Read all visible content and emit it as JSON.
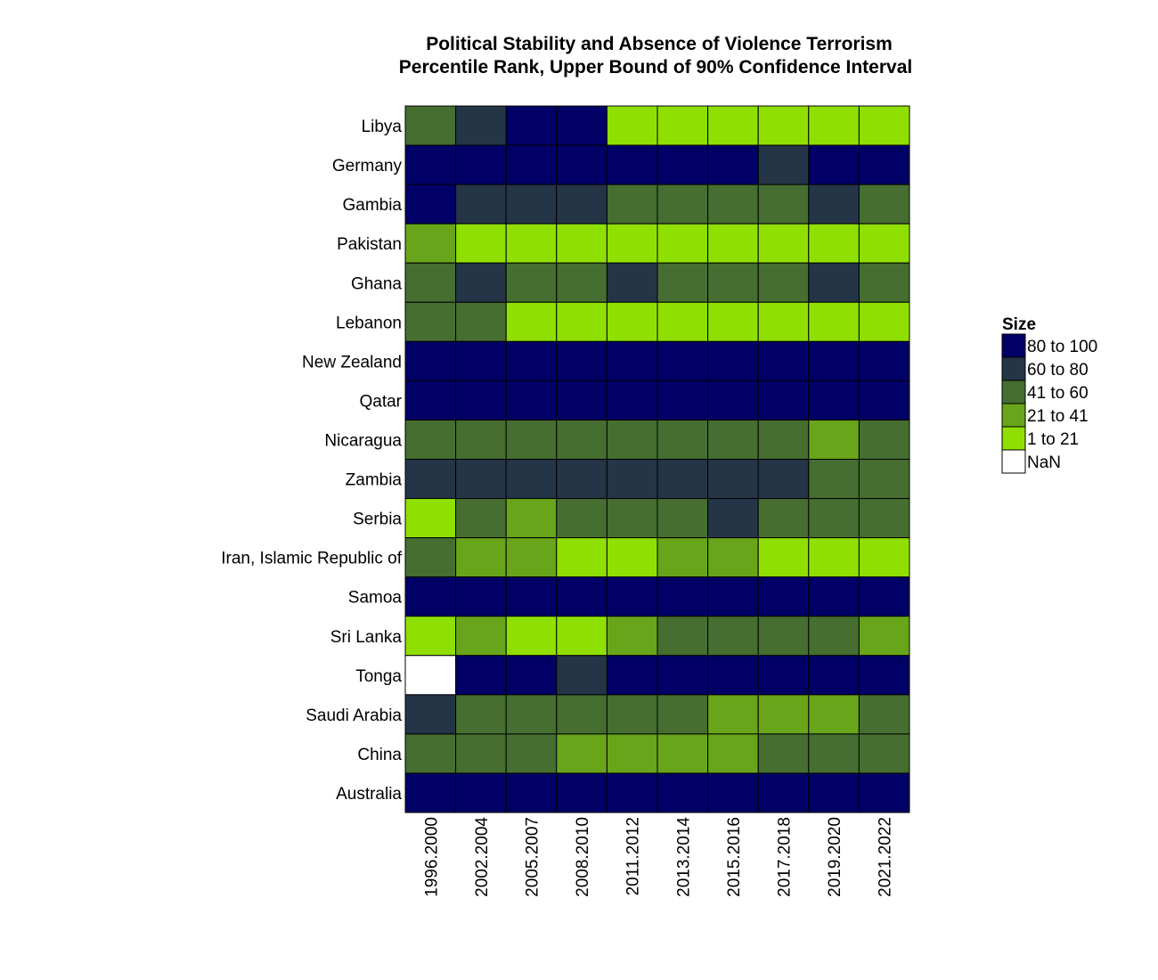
{
  "chart_data": {
    "type": "heatmap",
    "title": [
      "Political Stability and Absence of Violence Terrorism",
      "Percentile Rank, Upper Bound of 90% Confidence Interval"
    ],
    "legend_title": "Size",
    "legend_position": "right",
    "x": [
      "1996.2000",
      "2002.2004",
      "2005.2007",
      "2008.2010",
      "2011.2012",
      "2013.2014",
      "2015.2016",
      "2017.2018",
      "2019.2020",
      "2021.2022"
    ],
    "y": [
      "Libya",
      "Germany",
      "Gambia",
      "Pakistan",
      "Ghana",
      "Lebanon",
      "New Zealand",
      "Qatar",
      "Nicaragua",
      "Zambia",
      "Serbia",
      "Iran, Islamic Republic of",
      "Samoa",
      "Sri Lanka",
      "Tonga",
      "Saudi Arabia",
      "China",
      "Australia"
    ],
    "bins": [
      {
        "label": "80 to 100",
        "color": "#000066"
      },
      {
        "label": "60 to 80",
        "color": "#243547"
      },
      {
        "label": "41 to 60",
        "color": "#456E30"
      },
      {
        "label": "21 to 41",
        "color": "#68A51A"
      },
      {
        "label": "1 to 21",
        "color": "#8FE000"
      },
      {
        "label": "NaN",
        "color": "#FFFFFF"
      }
    ],
    "cells": [
      [
        "41 to 60",
        "60 to 80",
        "80 to 100",
        "80 to 100",
        "1 to 21",
        "1 to 21",
        "1 to 21",
        "1 to 21",
        "1 to 21",
        "1 to 21"
      ],
      [
        "80 to 100",
        "80 to 100",
        "80 to 100",
        "80 to 100",
        "80 to 100",
        "80 to 100",
        "80 to 100",
        "60 to 80",
        "80 to 100",
        "80 to 100"
      ],
      [
        "80 to 100",
        "60 to 80",
        "60 to 80",
        "60 to 80",
        "41 to 60",
        "41 to 60",
        "41 to 60",
        "41 to 60",
        "60 to 80",
        "41 to 60"
      ],
      [
        "21 to 41",
        "1 to 21",
        "1 to 21",
        "1 to 21",
        "1 to 21",
        "1 to 21",
        "1 to 21",
        "1 to 21",
        "1 to 21",
        "1 to 21"
      ],
      [
        "41 to 60",
        "60 to 80",
        "41 to 60",
        "41 to 60",
        "60 to 80",
        "41 to 60",
        "41 to 60",
        "41 to 60",
        "60 to 80",
        "41 to 60"
      ],
      [
        "41 to 60",
        "41 to 60",
        "1 to 21",
        "1 to 21",
        "1 to 21",
        "1 to 21",
        "1 to 21",
        "1 to 21",
        "1 to 21",
        "1 to 21"
      ],
      [
        "80 to 100",
        "80 to 100",
        "80 to 100",
        "80 to 100",
        "80 to 100",
        "80 to 100",
        "80 to 100",
        "80 to 100",
        "80 to 100",
        "80 to 100"
      ],
      [
        "80 to 100",
        "80 to 100",
        "80 to 100",
        "80 to 100",
        "80 to 100",
        "80 to 100",
        "80 to 100",
        "80 to 100",
        "80 to 100",
        "80 to 100"
      ],
      [
        "41 to 60",
        "41 to 60",
        "41 to 60",
        "41 to 60",
        "41 to 60",
        "41 to 60",
        "41 to 60",
        "41 to 60",
        "21 to 41",
        "41 to 60"
      ],
      [
        "60 to 80",
        "60 to 80",
        "60 to 80",
        "60 to 80",
        "60 to 80",
        "60 to 80",
        "60 to 80",
        "60 to 80",
        "41 to 60",
        "41 to 60"
      ],
      [
        "1 to 21",
        "41 to 60",
        "21 to 41",
        "41 to 60",
        "41 to 60",
        "41 to 60",
        "60 to 80",
        "41 to 60",
        "41 to 60",
        "41 to 60"
      ],
      [
        "41 to 60",
        "21 to 41",
        "21 to 41",
        "1 to 21",
        "1 to 21",
        "21 to 41",
        "21 to 41",
        "1 to 21",
        "1 to 21",
        "1 to 21"
      ],
      [
        "80 to 100",
        "80 to 100",
        "80 to 100",
        "80 to 100",
        "80 to 100",
        "80 to 100",
        "80 to 100",
        "80 to 100",
        "80 to 100",
        "80 to 100"
      ],
      [
        "1 to 21",
        "21 to 41",
        "1 to 21",
        "1 to 21",
        "21 to 41",
        "41 to 60",
        "41 to 60",
        "41 to 60",
        "41 to 60",
        "21 to 41"
      ],
      [
        "NaN",
        "80 to 100",
        "80 to 100",
        "60 to 80",
        "80 to 100",
        "80 to 100",
        "80 to 100",
        "80 to 100",
        "80 to 100",
        "80 to 100"
      ],
      [
        "60 to 80",
        "41 to 60",
        "41 to 60",
        "41 to 60",
        "41 to 60",
        "41 to 60",
        "21 to 41",
        "21 to 41",
        "21 to 41",
        "41 to 60"
      ],
      [
        "41 to 60",
        "41 to 60",
        "41 to 60",
        "21 to 41",
        "21 to 41",
        "21 to 41",
        "21 to 41",
        "41 to 60",
        "41 to 60",
        "41 to 60"
      ],
      [
        "80 to 100",
        "80 to 100",
        "80 to 100",
        "80 to 100",
        "80 to 100",
        "80 to 100",
        "80 to 100",
        "80 to 100",
        "80 to 100",
        "80 to 100"
      ]
    ]
  }
}
